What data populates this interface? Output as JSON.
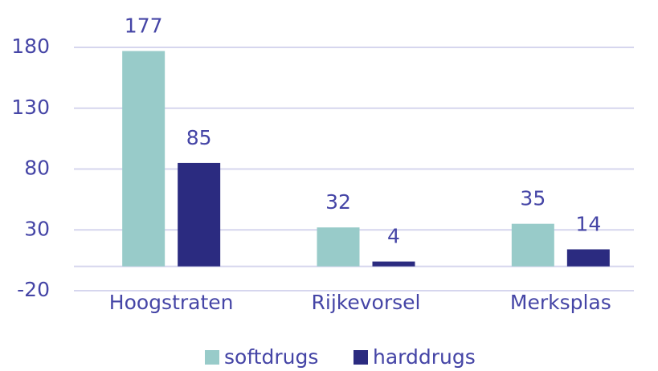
{
  "chart_data": {
    "type": "bar",
    "categories": [
      "Hoogstraten",
      "Rijkevorsel",
      "Merksplas"
    ],
    "series": [
      {
        "name": "softdrugs",
        "color": "#98cbc9",
        "values": [
          177,
          32,
          35
        ]
      },
      {
        "name": "harddrugs",
        "color": "#2b2b80",
        "values": [
          85,
          4,
          14
        ]
      }
    ],
    "ylim": [
      -20,
      180
    ],
    "yticks": [
      -20,
      30,
      80,
      130,
      180
    ],
    "grid": true,
    "legend": "bottom"
  }
}
